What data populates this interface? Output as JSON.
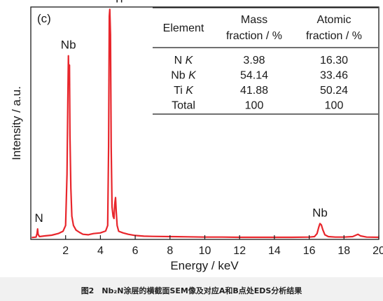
{
  "chart_data": {
    "type": "line",
    "panel_label": "(c)",
    "xlabel": "Energy / keV",
    "ylabel": "Intensity / a.u.",
    "xlim": [
      0,
      20
    ],
    "ylim": [
      0,
      100
    ],
    "x_ticks": [
      "2",
      "4",
      "6",
      "8",
      "10",
      "12",
      "14",
      "16",
      "18",
      "20"
    ],
    "grid": false,
    "line_color": "#e8262c",
    "series": [
      {
        "values": [
          {
            "x": 0.05,
            "y": 0.8
          },
          {
            "x": 0.3,
            "y": 1.0
          },
          {
            "x": 0.36,
            "y": 2.5
          },
          {
            "x": 0.39,
            "y": 4.5
          },
          {
            "x": 0.42,
            "y": 2.2
          },
          {
            "x": 0.5,
            "y": 1.2
          },
          {
            "x": 0.8,
            "y": 1.5
          },
          {
            "x": 1.2,
            "y": 1.8
          },
          {
            "x": 1.6,
            "y": 2.6
          },
          {
            "x": 1.85,
            "y": 3.5
          },
          {
            "x": 2.0,
            "y": 6
          },
          {
            "x": 2.08,
            "y": 28
          },
          {
            "x": 2.13,
            "y": 60
          },
          {
            "x": 2.16,
            "y": 79
          },
          {
            "x": 2.19,
            "y": 67
          },
          {
            "x": 2.22,
            "y": 75
          },
          {
            "x": 2.25,
            "y": 45
          },
          {
            "x": 2.3,
            "y": 22
          },
          {
            "x": 2.36,
            "y": 10
          },
          {
            "x": 2.45,
            "y": 6
          },
          {
            "x": 2.6,
            "y": 4
          },
          {
            "x": 2.8,
            "y": 3
          },
          {
            "x": 3.0,
            "y": 2.2
          },
          {
            "x": 3.3,
            "y": 2
          },
          {
            "x": 3.6,
            "y": 2.5
          },
          {
            "x": 4.0,
            "y": 2.8
          },
          {
            "x": 4.3,
            "y": 3.6
          },
          {
            "x": 4.42,
            "y": 6
          },
          {
            "x": 4.47,
            "y": 40
          },
          {
            "x": 4.51,
            "y": 96
          },
          {
            "x": 4.54,
            "y": 99
          },
          {
            "x": 4.58,
            "y": 88
          },
          {
            "x": 4.62,
            "y": 40
          },
          {
            "x": 4.67,
            "y": 14
          },
          {
            "x": 4.73,
            "y": 10
          },
          {
            "x": 4.78,
            "y": 9
          },
          {
            "x": 4.82,
            "y": 15
          },
          {
            "x": 4.87,
            "y": 18
          },
          {
            "x": 4.91,
            "y": 12
          },
          {
            "x": 4.96,
            "y": 6
          },
          {
            "x": 5.05,
            "y": 3.5
          },
          {
            "x": 5.3,
            "y": 2.8
          },
          {
            "x": 5.6,
            "y": 2.2
          },
          {
            "x": 6.0,
            "y": 1.7
          },
          {
            "x": 6.5,
            "y": 1.4
          },
          {
            "x": 7.0,
            "y": 1.3
          },
          {
            "x": 8.0,
            "y": 1.2
          },
          {
            "x": 9.0,
            "y": 1.1
          },
          {
            "x": 10.0,
            "y": 1.0
          },
          {
            "x": 11.0,
            "y": 1.0
          },
          {
            "x": 12.0,
            "y": 0.9
          },
          {
            "x": 13.0,
            "y": 0.9
          },
          {
            "x": 14.0,
            "y": 0.9
          },
          {
            "x": 15.0,
            "y": 0.9
          },
          {
            "x": 16.0,
            "y": 1.0
          },
          {
            "x": 16.3,
            "y": 1.2
          },
          {
            "x": 16.45,
            "y": 2.5
          },
          {
            "x": 16.55,
            "y": 5.3
          },
          {
            "x": 16.62,
            "y": 6.8
          },
          {
            "x": 16.7,
            "y": 6.2
          },
          {
            "x": 16.78,
            "y": 4.2
          },
          {
            "x": 16.9,
            "y": 2
          },
          {
            "x": 17.1,
            "y": 1.2
          },
          {
            "x": 17.5,
            "y": 1.0
          },
          {
            "x": 18.0,
            "y": 1.0
          },
          {
            "x": 18.5,
            "y": 1.2
          },
          {
            "x": 18.8,
            "y": 2.2
          },
          {
            "x": 18.95,
            "y": 1.5
          },
          {
            "x": 19.3,
            "y": 1.0
          },
          {
            "x": 20.0,
            "y": 0.9
          }
        ]
      }
    ],
    "peak_labels": [
      {
        "text": "N",
        "x": 0.39,
        "y": 4.5
      },
      {
        "text": "Nb",
        "x": 2.16,
        "y": 79
      },
      {
        "text": "Ti",
        "x": 4.54,
        "y": 99
      },
      {
        "text": "Nb",
        "x": 16.62,
        "y": 6.8
      }
    ],
    "table": {
      "header": {
        "element": "Element",
        "mass": [
          "Mass",
          "fraction / %"
        ],
        "atomic": [
          "Atomic",
          "fraction / %"
        ]
      },
      "rows": [
        {
          "el": "N",
          "line": "K",
          "mass": "3.98",
          "atomic": "16.30"
        },
        {
          "el": "Nb",
          "line": "K",
          "mass": "54.14",
          "atomic": "33.46"
        },
        {
          "el": "Ti",
          "line": "K",
          "mass": "41.88",
          "atomic": "50.24"
        },
        {
          "el": "Total",
          "line": "",
          "mass": "100",
          "atomic": "100"
        }
      ]
    }
  },
  "caption": "图2　Nb₂N涂层的横截面SEM像及对应A和B点处EDS分析结果"
}
